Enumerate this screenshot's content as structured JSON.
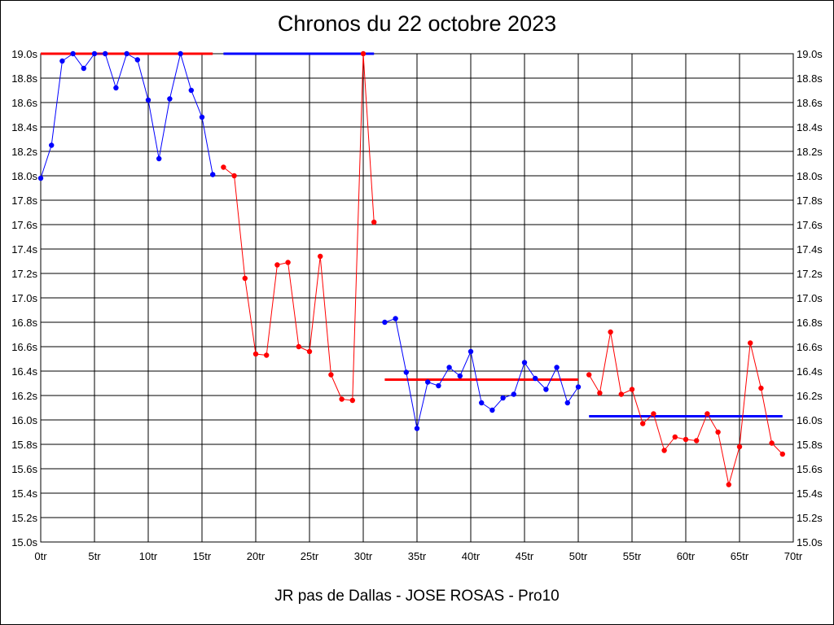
{
  "chart_data": {
    "type": "line",
    "title": "Chronos du 22 octobre 2023",
    "footer": "JR pas de Dallas - JOSE ROSAS - Pro10",
    "xlim": [
      0,
      70
    ],
    "ylim": [
      15.0,
      19.0
    ],
    "grid": true,
    "x_ticks": [
      {
        "value": 0,
        "label": "0tr"
      },
      {
        "value": 5,
        "label": "5tr"
      },
      {
        "value": 10,
        "label": "10tr"
      },
      {
        "value": 15,
        "label": "15tr"
      },
      {
        "value": 20,
        "label": "20tr"
      },
      {
        "value": 25,
        "label": "25tr"
      },
      {
        "value": 30,
        "label": "30tr"
      },
      {
        "value": 35,
        "label": "35tr"
      },
      {
        "value": 40,
        "label": "40tr"
      },
      {
        "value": 45,
        "label": "45tr"
      },
      {
        "value": 50,
        "label": "50tr"
      },
      {
        "value": 55,
        "label": "55tr"
      },
      {
        "value": 60,
        "label": "60tr"
      },
      {
        "value": 65,
        "label": "65tr"
      },
      {
        "value": 70,
        "label": "70tr"
      }
    ],
    "y_ticks": [
      {
        "value": 19.0,
        "label": "19.0s"
      },
      {
        "value": 18.8,
        "label": "18.8s"
      },
      {
        "value": 18.6,
        "label": "18.6s"
      },
      {
        "value": 18.4,
        "label": "18.4s"
      },
      {
        "value": 18.2,
        "label": "18.2s"
      },
      {
        "value": 18.0,
        "label": "18.0s"
      },
      {
        "value": 17.8,
        "label": "17.8s"
      },
      {
        "value": 17.6,
        "label": "17.6s"
      },
      {
        "value": 17.4,
        "label": "17.4s"
      },
      {
        "value": 17.2,
        "label": "17.2s"
      },
      {
        "value": 17.0,
        "label": "17.0s"
      },
      {
        "value": 16.8,
        "label": "16.8s"
      },
      {
        "value": 16.6,
        "label": "16.6s"
      },
      {
        "value": 16.4,
        "label": "16.4s"
      },
      {
        "value": 16.2,
        "label": "16.2s"
      },
      {
        "value": 16.0,
        "label": "16.0s"
      },
      {
        "value": 15.8,
        "label": "15.8s"
      },
      {
        "value": 15.6,
        "label": "15.6s"
      },
      {
        "value": 15.4,
        "label": "15.4s"
      },
      {
        "value": 15.2,
        "label": "15.2s"
      },
      {
        "value": 15.0,
        "label": "15.0s"
      }
    ],
    "series": [
      {
        "color": "#0000ff",
        "x": [
          0,
          1,
          2,
          3,
          4,
          5,
          6,
          7,
          8,
          9,
          10,
          11,
          12,
          13,
          14,
          15,
          16
        ],
        "y": [
          17.98,
          18.25,
          18.94,
          19.0,
          18.88,
          19.0,
          19.0,
          18.72,
          19.0,
          18.95,
          18.62,
          18.14,
          18.63,
          19.0,
          18.7,
          18.48,
          18.01
        ],
        "mean": 19.0
      },
      {
        "color": "#ff0000",
        "x": [
          17,
          18,
          19,
          20,
          21,
          22,
          23,
          24,
          25,
          26,
          27,
          28,
          29,
          30,
          31
        ],
        "y": [
          18.07,
          18.0,
          17.16,
          16.54,
          16.53,
          17.27,
          17.29,
          16.6,
          16.56,
          17.34,
          16.37,
          16.17,
          16.16,
          19.0,
          17.62
        ],
        "mean": 19.0
      },
      {
        "color": "#0000ff",
        "x": [
          32,
          33,
          34,
          35,
          36,
          37,
          38,
          39,
          40,
          41,
          42,
          43,
          44,
          45,
          46,
          47,
          48,
          49,
          50
        ],
        "y": [
          16.8,
          16.83,
          16.39,
          15.93,
          16.31,
          16.28,
          16.43,
          16.36,
          16.56,
          16.14,
          16.08,
          16.18,
          16.21,
          16.47,
          16.34,
          16.25,
          16.43,
          16.14,
          16.27
        ],
        "mean": 16.33
      },
      {
        "color": "#ff0000",
        "x": [
          51,
          52,
          53,
          54,
          55,
          56,
          57,
          58,
          59,
          60,
          61,
          62,
          63,
          64,
          65,
          66,
          67,
          68,
          69
        ],
        "y": [
          16.37,
          16.22,
          16.72,
          16.21,
          16.25,
          15.97,
          16.05,
          15.75,
          15.86,
          15.84,
          15.83,
          16.05,
          15.9,
          15.47,
          15.78,
          16.63,
          16.26,
          15.81,
          15.72
        ],
        "mean": 16.03
      }
    ],
    "mean_lines": [
      {
        "color": "#ff0000",
        "x": [
          0,
          16
        ],
        "y": 19.0
      },
      {
        "color": "#0000ff",
        "x": [
          17,
          31
        ],
        "y": 19.0
      },
      {
        "color": "#ff0000",
        "x": [
          32,
          50
        ],
        "y": 16.33
      },
      {
        "color": "#0000ff",
        "x": [
          51,
          69
        ],
        "y": 16.03
      }
    ]
  }
}
